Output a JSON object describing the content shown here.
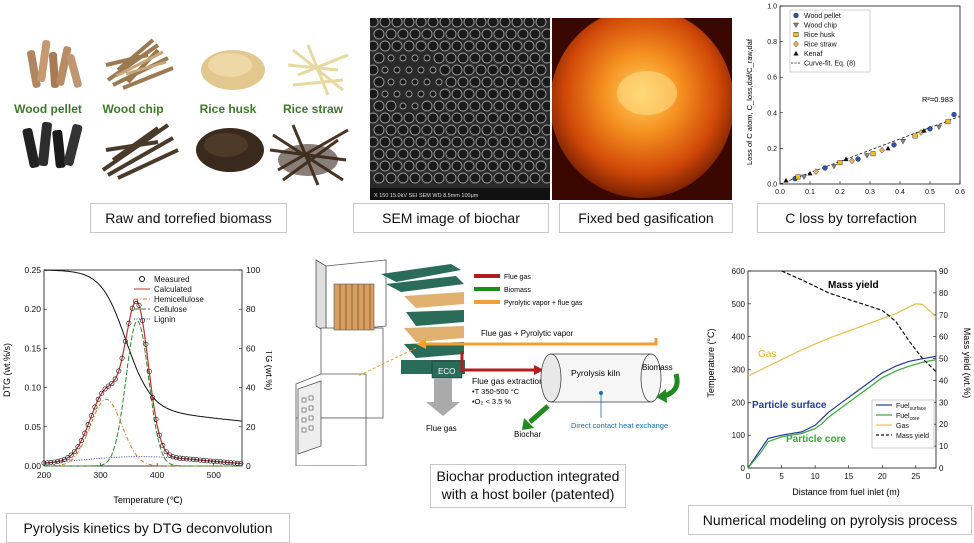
{
  "captions": {
    "raw_biomass": "Raw and torrefied biomass",
    "sem": "SEM image of biochar",
    "gasification": "Fixed bed gasification",
    "c_loss": "C loss by torrefaction",
    "kinetics": "Pyrolysis kinetics by DTG deconvolution",
    "boiler_l1": "Biochar production integrated",
    "boiler_l2": "with a host boiler (patented)",
    "modeling": "Numerical modeling on pyrolysis process"
  },
  "biomass_labels": [
    "Wood pellet",
    "Wood chip",
    "Rice husk",
    "Rice straw"
  ],
  "sem_footer": "X 150   15.0kV SEI   SEM   WD 8.5mm   100μm",
  "colors": {
    "green_label": "#3f7a2a",
    "fire": "#f26b10"
  },
  "c_loss_chart": {
    "type": "scatter",
    "ylabel": "Loss of C atom, C_loss,daf/C_raw,daf",
    "x_ticks": [
      "0.0",
      "0.1",
      "0.2",
      "0.3",
      "0.4",
      "0.5",
      "0.6"
    ],
    "y_ticks": [
      "0.0",
      "0.2",
      "0.4",
      "0.6",
      "0.8",
      "1.0"
    ],
    "xlim": [
      0,
      0.6
    ],
    "ylim": [
      0,
      1.0
    ],
    "annotation": "R²=0.983",
    "legend": [
      "Wood pellet",
      "Wood chip",
      "Rice husk",
      "Rice straw",
      "Kenaf",
      "Curve-fit. Eq. (8)"
    ],
    "series": [
      {
        "name": "Wood pellet",
        "marker": "circle",
        "x": [
          0.05,
          0.15,
          0.26,
          0.38,
          0.5,
          0.58
        ],
        "y": [
          0.03,
          0.09,
          0.14,
          0.22,
          0.31,
          0.39
        ]
      },
      {
        "name": "Wood chip",
        "marker": "tri-down",
        "x": [
          0.08,
          0.18,
          0.29,
          0.41,
          0.53
        ],
        "y": [
          0.04,
          0.1,
          0.16,
          0.24,
          0.32
        ]
      },
      {
        "name": "Rice husk",
        "marker": "square",
        "x": [
          0.06,
          0.2,
          0.31,
          0.45,
          0.56
        ],
        "y": [
          0.04,
          0.12,
          0.17,
          0.27,
          0.35
        ]
      },
      {
        "name": "Rice straw",
        "marker": "diamond",
        "x": [
          0.12,
          0.24,
          0.34,
          0.47
        ],
        "y": [
          0.07,
          0.13,
          0.19,
          0.29
        ]
      },
      {
        "name": "Kenaf",
        "marker": "tri-up",
        "x": [
          0.02,
          0.1,
          0.22,
          0.36,
          0.48
        ],
        "y": [
          0.02,
          0.06,
          0.14,
          0.2,
          0.3
        ]
      }
    ],
    "fit": {
      "x": [
        0,
        0.6
      ],
      "y": [
        0,
        0.38
      ]
    }
  },
  "dtg_chart": {
    "type": "line",
    "xlabel": "Temperature (℃)",
    "ylabel_left": "DTG (wt.%/s)",
    "ylabel_right": "TG (wt.%)",
    "x_ticks": [
      "200",
      "300",
      "400",
      "500"
    ],
    "yl_ticks": [
      "0.00",
      "0.05",
      "0.10",
      "0.15",
      "0.20",
      "0.25"
    ],
    "yr_ticks": [
      "0",
      "20",
      "40",
      "60",
      "80",
      "100"
    ],
    "xlim": [
      200,
      550
    ],
    "ylim_left": [
      0,
      0.25
    ],
    "ylim_right": [
      0,
      100
    ],
    "legend": [
      "Measured",
      "Calculated",
      "Hemicellulose",
      "Cellulose",
      "Lignin"
    ],
    "components": [
      {
        "name": "Hemicellulose",
        "color": "#e0761f",
        "center": 310,
        "width": 28,
        "amp": 0.085
      },
      {
        "name": "Cellulose",
        "color": "#2a8a2a",
        "center": 365,
        "width": 20,
        "amp": 0.185
      },
      {
        "name": "Lignin",
        "color": "#2b3fa8",
        "center": 370,
        "width": 110,
        "amp": 0.012
      }
    ]
  },
  "boiler": {
    "legend": [
      "Flue gas",
      "Biomass",
      "Pyrolytic vapor + flue gas"
    ],
    "legend_colors": [
      "#b01e1e",
      "#1f8a1f",
      "#f0a030"
    ],
    "labels": {
      "flue_vapor": "Flue gas + Pyrolytic vapor",
      "biomass": "Biomass",
      "eco": "ECO",
      "extraction_l1": "Flue gas extraction",
      "extraction_l2": "•T 350-500 °C",
      "extraction_l3": "•O₂ < 3.5 %",
      "kiln": "Pyrolysis kiln",
      "heat_exchange": "Direct contact heat exchange",
      "flue_gas": "Flue gas",
      "biochar": "Biochar"
    }
  },
  "model_chart": {
    "type": "line",
    "xlabel": "Distance from fuel inlet (m)",
    "ylabel_left": "Temperature (°C)",
    "ylabel_right": "Mass yield (wt.%)",
    "x_ticks": [
      "0",
      "5",
      "10",
      "15",
      "20",
      "25"
    ],
    "yl_ticks": [
      "0",
      "100",
      "200",
      "300",
      "400",
      "500",
      "600"
    ],
    "yr_ticks": [
      "0",
      "10",
      "20",
      "30",
      "40",
      "50",
      "60",
      "70",
      "80",
      "90"
    ],
    "xlim": [
      0,
      28
    ],
    "ylim_left": [
      0,
      600
    ],
    "ylim_right": [
      0,
      90
    ],
    "annotations": [
      "Mass yield",
      "Gas",
      "Particle surface",
      "Particle core"
    ],
    "legend": [
      {
        "base": "Fuel",
        "sub": "surface"
      },
      {
        "base": "Fuel",
        "sub": "core"
      },
      {
        "base": "Gas",
        "sub": ""
      },
      {
        "base": "Mass yield",
        "sub": ""
      }
    ],
    "series": [
      {
        "name": "Fuel surface",
        "color": "#233a9a",
        "x": [
          0,
          2,
          3,
          5,
          8,
          10,
          11,
          12,
          14,
          16,
          18,
          20,
          22,
          24,
          26,
          28
        ],
        "y": [
          0,
          60,
          90,
          100,
          110,
          130,
          150,
          170,
          200,
          230,
          260,
          290,
          310,
          325,
          333,
          340
        ]
      },
      {
        "name": "Fuel core",
        "color": "#3aa83a",
        "x": [
          0,
          2,
          3,
          5,
          8,
          10,
          11,
          12,
          14,
          16,
          18,
          20,
          22,
          24,
          26,
          28
        ],
        "y": [
          0,
          50,
          80,
          95,
          105,
          120,
          135,
          155,
          185,
          215,
          245,
          275,
          295,
          310,
          322,
          330
        ]
      },
      {
        "name": "Gas",
        "color": "#e8c050",
        "x": [
          0,
          4,
          8,
          12,
          16,
          20,
          22,
          24,
          25,
          26,
          27,
          28
        ],
        "y": [
          280,
          320,
          360,
          395,
          425,
          455,
          470,
          490,
          500,
          498,
          480,
          460
        ]
      },
      {
        "name": "Mass yield",
        "color": "#111111",
        "axis": "right",
        "x": [
          5,
          8,
          10,
          12,
          15,
          18,
          20,
          22,
          24,
          26,
          28
        ],
        "y": [
          90,
          86,
          83,
          80,
          77,
          74,
          72,
          67,
          58,
          50,
          44
        ]
      }
    ]
  }
}
